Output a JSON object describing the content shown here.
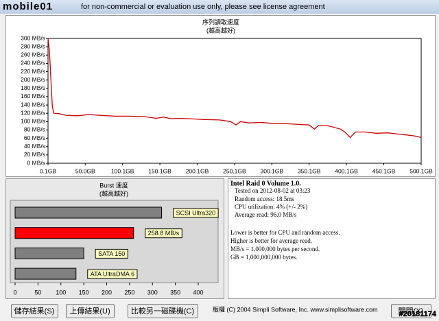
{
  "title_bar": {
    "logo": "mobile01",
    "text": "for non-commercial or evaluation use only, please see license agreement"
  },
  "chart_data": [
    {
      "type": "line",
      "title": "序列讀取速度",
      "subtitle": "(越高越好)",
      "x": [
        0.1,
        2,
        4,
        6,
        8,
        15,
        25,
        40,
        55,
        70,
        90,
        110,
        130,
        145,
        155,
        165,
        175,
        190,
        210,
        230,
        245,
        252,
        258,
        270,
        285,
        300,
        320,
        340,
        350,
        357,
        362,
        375,
        380,
        392,
        398,
        405,
        412,
        425,
        440,
        455,
        470,
        480,
        490,
        500.1
      ],
      "series": [
        {
          "color": "#cc0000",
          "values": [
            300,
            270,
            200,
            135,
            120,
            119,
            115,
            114,
            117,
            115,
            113,
            113,
            112,
            108,
            111,
            107,
            108,
            107,
            105,
            104,
            100,
            92,
            100,
            97,
            98,
            96,
            95,
            93,
            92,
            82,
            90,
            90,
            88,
            82,
            75,
            62,
            75,
            75,
            72,
            73,
            70,
            68,
            66,
            62
          ]
        }
      ],
      "xlim": [
        0.1,
        500.1
      ],
      "xticks": [
        {
          "value": 0.1,
          "label": "0.1GB"
        },
        {
          "value": 50,
          "label": "50.0GB"
        },
        {
          "value": 100,
          "label": "100.1GB"
        },
        {
          "value": 150,
          "label": "150.1GB"
        },
        {
          "value": 200,
          "label": "200.1GB"
        },
        {
          "value": 250,
          "label": "250.1GB"
        },
        {
          "value": 300,
          "label": "300.1GB"
        },
        {
          "value": 350,
          "label": "350.1GB"
        },
        {
          "value": 400,
          "label": "400.1GB"
        },
        {
          "value": 450,
          "label": "450.1GB"
        },
        {
          "value": 500.1,
          "label": "500.1GB"
        }
      ],
      "ylim": [
        0,
        300
      ],
      "yticks": [
        {
          "value": 0,
          "label": "0 MB/s"
        },
        {
          "value": 20,
          "label": "20 MB/s"
        },
        {
          "value": 40,
          "label": "40 MB/s"
        },
        {
          "value": 60,
          "label": "60 MB/s"
        },
        {
          "value": 80,
          "label": "80 MB/s"
        },
        {
          "value": 100,
          "label": "100 MB/s"
        },
        {
          "value": 120,
          "label": "120 MB/s"
        },
        {
          "value": 140,
          "label": "140 MB/s"
        },
        {
          "value": 160,
          "label": "160 MB/s"
        },
        {
          "value": 180,
          "label": "180 MB/s"
        },
        {
          "value": 200,
          "label": "200 MB/s"
        },
        {
          "value": 220,
          "label": "220 MB/s"
        },
        {
          "value": 240,
          "label": "240 MB/s"
        },
        {
          "value": 260,
          "label": "260 MB/s"
        },
        {
          "value": 280,
          "label": "280 MB/s"
        },
        {
          "value": 300,
          "label": "300 MB/s"
        }
      ]
    },
    {
      "type": "hbar",
      "title": "Burst 速度",
      "subtitle": "(越高越好)",
      "categories": [
        "SCSI Ultra320",
        null,
        "SATA 150",
        "ATA UltraDMA 6"
      ],
      "values": [
        320,
        258.8,
        150,
        133
      ],
      "value_labels": [
        null,
        "258.8 MB/s",
        null,
        null
      ],
      "colors": [
        "#808080",
        "#ff0000",
        "#808080",
        "#808080"
      ],
      "xlim": [
        0,
        400
      ],
      "xticks": [
        0,
        50,
        100,
        150,
        200,
        250,
        300,
        350,
        400
      ]
    }
  ],
  "info": {
    "title": "Intel Raid 0 Volume 1.0.",
    "stats": [
      "Tested on 2012-08-02 at 03:23",
      "Random access: 18.5ms",
      "CPU utilization: 4% (+/- 2%)",
      "Average read: 96.0 MB/s"
    ],
    "notes": [
      "Lower is better for CPU and random access.",
      "Higher is better for average read.",
      "MB/s = 1,000,000 bytes per second.",
      "GB = 1,000,000,000 bytes."
    ]
  },
  "buttons": [
    "儲存結果(S)",
    "上傳結果(U)",
    "比較另一磁碟機(C)",
    "關閉(X)"
  ],
  "footer": "版權 (C) 2004 Simpli Software, Inc. www.simplisoftware.com",
  "watermark": "#20181174"
}
